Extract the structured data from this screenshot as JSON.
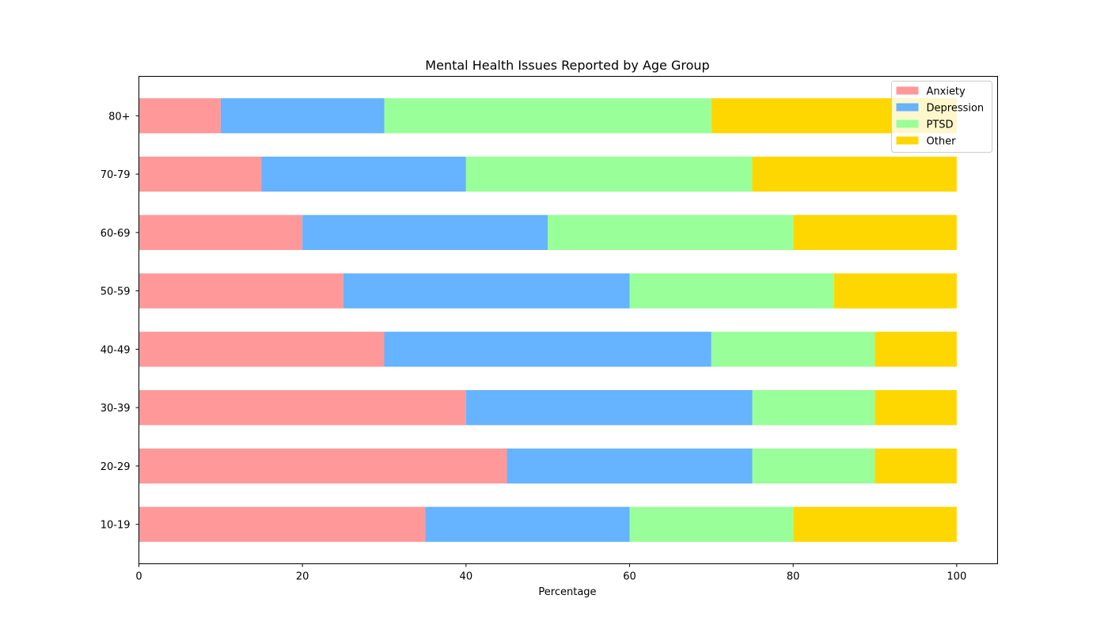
{
  "chart_data": {
    "type": "bar",
    "orientation": "horizontal",
    "stacked": true,
    "title": "Mental Health Issues Reported by Age Group",
    "xlabel": "Percentage",
    "ylabel": "",
    "xlim": [
      0,
      105
    ],
    "xticks": [
      "0",
      "20",
      "40",
      "60",
      "80",
      "100"
    ],
    "categories": [
      "10-19",
      "20-29",
      "30-39",
      "40-49",
      "50-59",
      "60-69",
      "70-79",
      "80+"
    ],
    "series": [
      {
        "name": "Anxiety",
        "color": "#ff9999",
        "values": [
          35,
          45,
          40,
          30,
          25,
          20,
          15,
          10
        ]
      },
      {
        "name": "Depression",
        "color": "#66b3ff",
        "values": [
          25,
          30,
          35,
          40,
          35,
          30,
          25,
          20
        ]
      },
      {
        "name": "PTSD",
        "color": "#99ff99",
        "values": [
          20,
          15,
          15,
          20,
          25,
          30,
          35,
          40
        ]
      },
      {
        "name": "Other",
        "color": "#ffd700",
        "values": [
          20,
          10,
          10,
          10,
          15,
          20,
          25,
          30
        ]
      }
    ],
    "grid": false,
    "legend_position": "top-right"
  }
}
